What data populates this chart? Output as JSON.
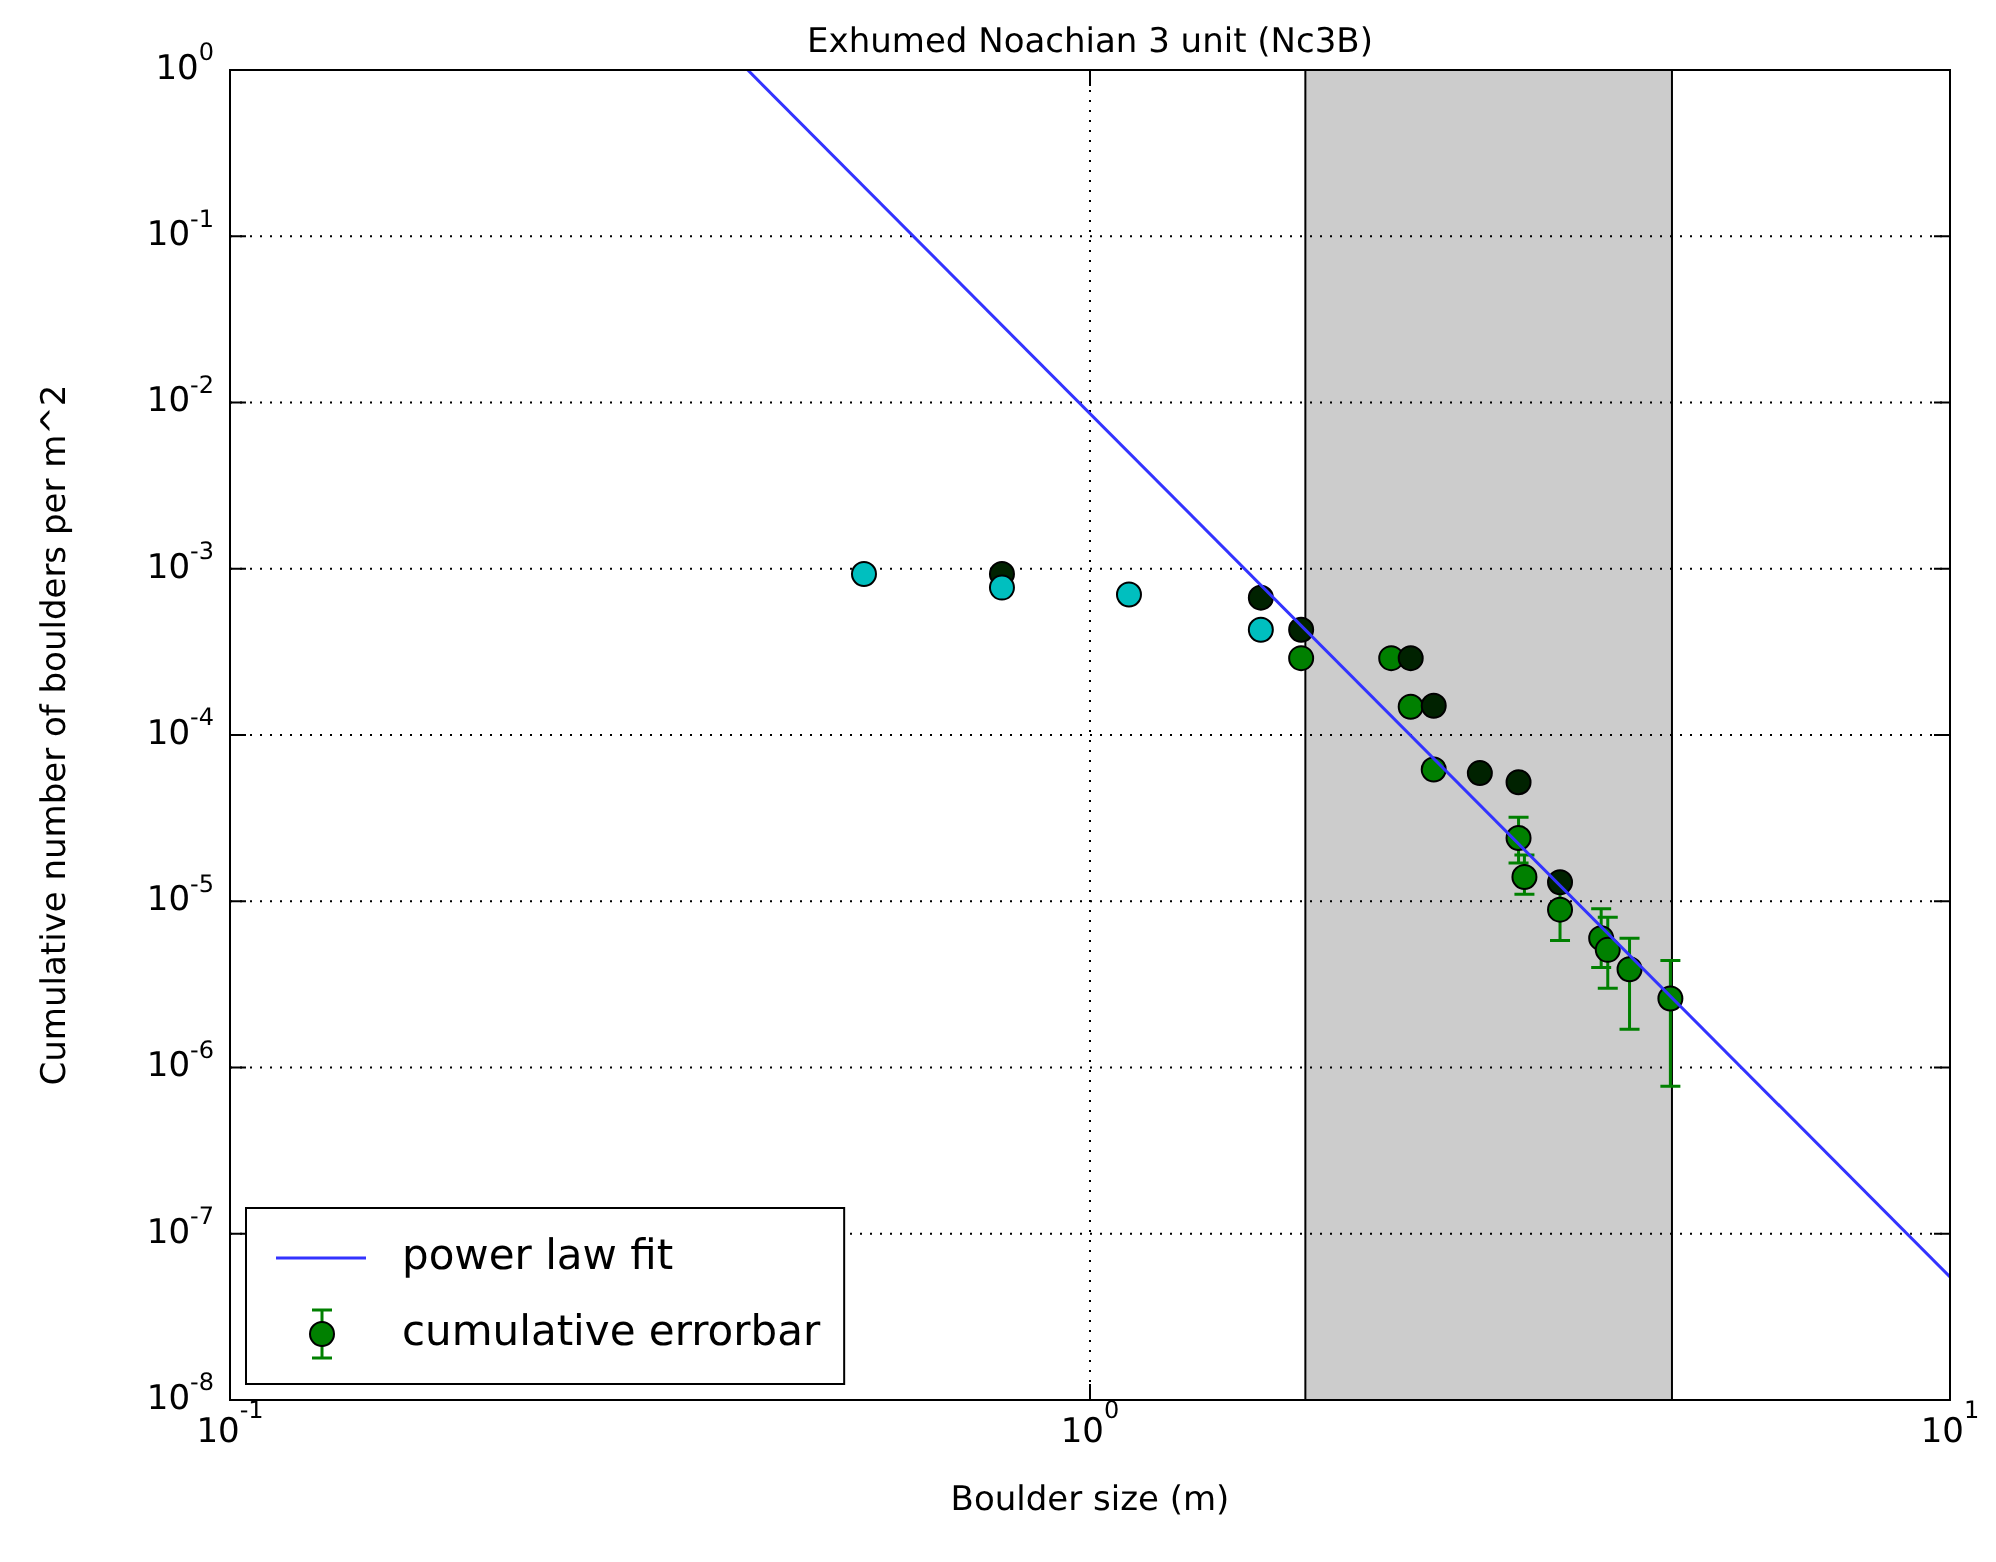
{
  "chart_data": {
    "type": "scatter",
    "title": "Exhumed Noachian 3 unit (Nc3B)",
    "xlabel": "Boulder size (m)",
    "ylabel": "Cumulative number of boulders per m^2",
    "log": "xy",
    "grid": true,
    "legend": "bottom left",
    "marker": "circle",
    "xlim": [
      0.1,
      10
    ],
    "xticks": [
      {
        "value": 0.1,
        "label": "10$^{-1}$"
      },
      {
        "value": 1,
        "label": "10$^{0}$"
      },
      {
        "value": 10,
        "label": "10$^{1}$"
      }
    ],
    "ylim": [
      1e-08,
      1
    ],
    "yticks": [
      {
        "value": 1e-08,
        "label": "10$^{-8}$"
      },
      {
        "value": 1e-07,
        "label": "10$^{-7}$"
      },
      {
        "value": 1e-06,
        "label": "10$^{-6}$"
      },
      {
        "value": 1e-05,
        "label": "10$^{-5}$"
      },
      {
        "value": 0.0001,
        "label": "10$^{-4}$"
      },
      {
        "value": 0.001,
        "label": "10$^{-3}$"
      },
      {
        "value": 0.01,
        "label": "10$^{-2}$"
      },
      {
        "value": 0.1,
        "label": "10$^{-1}$"
      },
      {
        "value": 1,
        "label": "10$^{0}$"
      }
    ],
    "bands": [
      {
        "axis": "x",
        "from": 1.78,
        "to": 4.75,
        "color": "#cccccc"
      }
    ],
    "series": [
      {
        "type": "line",
        "name": "power law fit",
        "color": "#3333ff",
        "line_style": "solid",
        "marker": "none",
        "x": [
          0.4,
          10
        ],
        "values": [
          1,
          5.5e-08
        ]
      },
      {
        "color": "#00bfbf",
        "x": [
          0.546,
          0.79,
          1.11,
          1.58
        ],
        "values": [
          0.00093,
          0.00077,
          0.0007,
          0.00043
        ]
      },
      {
        "color": "#002200",
        "x": [
          0.79,
          1.58,
          1.76,
          2.36,
          2.51,
          2.84,
          3.15,
          3.52
        ],
        "values": [
          0.00093,
          0.00067,
          0.00043,
          0.00029,
          0.00015,
          5.9e-05,
          5.2e-05,
          1.3e-05
        ]
      },
      {
        "name": "cumulative errorbar",
        "color": "#008000",
        "x": [
          1.76,
          2.24,
          2.36,
          2.51,
          3.15,
          3.2,
          3.52,
          3.93,
          4.0,
          4.24,
          4.73
        ],
        "values": [
          0.00029,
          0.00029,
          0.000148,
          6.2e-05,
          2.4e-05,
          1.4e-05,
          8.9e-06,
          6e-06,
          5.1e-06,
          3.9e-06,
          2.6e-06
        ],
        "errors": [
          null,
          null,
          null,
          null,
          [
            1.7e-05,
            3.2e-05
          ],
          [
            1.1e-05,
            1.9e-05
          ],
          [
            5.8e-06,
            1.3e-05
          ],
          [
            4e-06,
            9e-06
          ],
          [
            3e-06,
            8e-06
          ],
          [
            1.7e-06,
            6e-06
          ],
          [
            7.7e-07,
            4.4e-06
          ]
        ]
      }
    ]
  }
}
